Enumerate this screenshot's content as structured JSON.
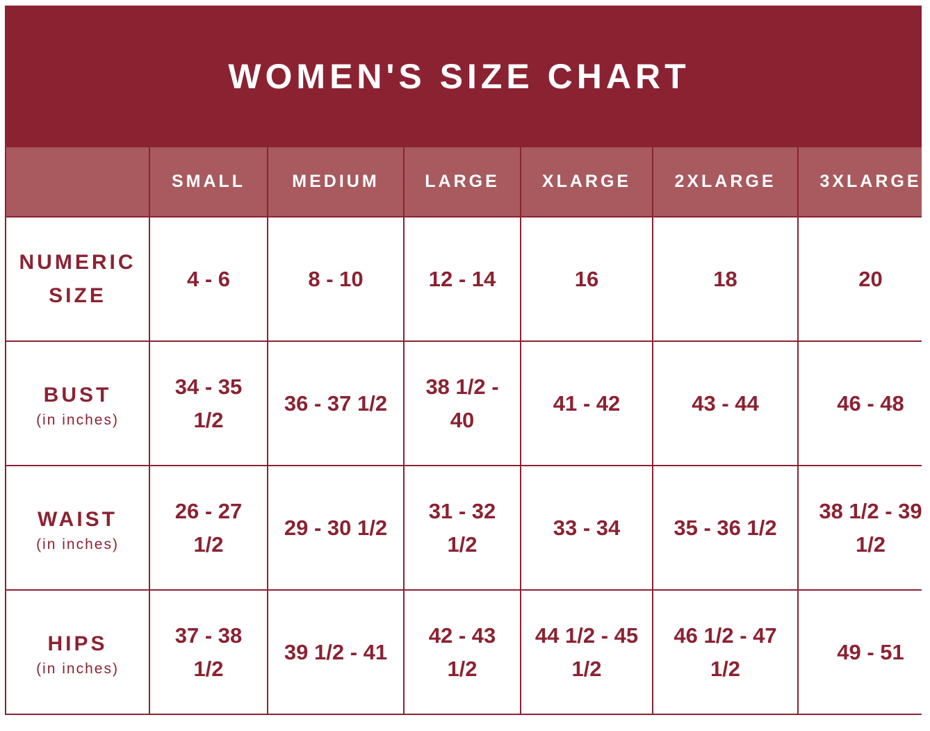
{
  "header": {
    "title": "WOMEN'S SIZE CHART"
  },
  "table": {
    "columns": [
      "SMALL",
      "MEDIUM",
      "LARGE",
      "XLARGE",
      "2XLARGE",
      "3XLARGE"
    ],
    "rows": [
      {
        "label": "NUMERIC SIZE",
        "cells": [
          "4 - 6",
          "8 - 10",
          "12 - 14",
          "16",
          "18",
          "20"
        ]
      },
      {
        "label": "BUST",
        "unit": "(in inches)",
        "cells": [
          "34 - 35 1/2",
          "36 - 37 1/2",
          "38 1/2 - 40",
          "41 - 42",
          "43 - 44",
          "46 - 48"
        ]
      },
      {
        "label": "WAIST",
        "unit": "(in inches)",
        "cells": [
          "26 - 27 1/2",
          "29 - 30 1/2",
          "31 - 32 1/2",
          "33 - 34",
          "35 - 36 1/2",
          "38 1/2 - 39 1/2"
        ]
      },
      {
        "label": "HIPS",
        "unit": "(in inches)",
        "cells": [
          "37 - 38 1/2",
          "39 1/2 - 41",
          "42 - 43 1/2",
          "44 1/2 - 45 1/2",
          "46 1/2 - 47 1/2",
          "49 - 51"
        ]
      }
    ]
  }
}
